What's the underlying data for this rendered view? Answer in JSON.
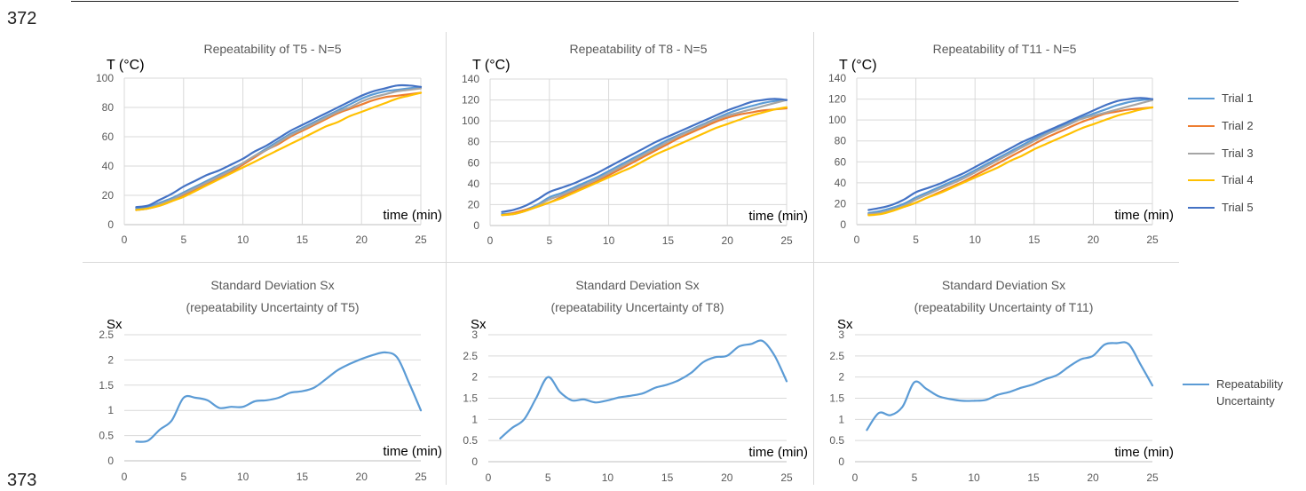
{
  "line_numbers": [
    "372",
    "373"
  ],
  "legend_top": [
    "Trial 1",
    "Trial 2",
    "Trial 3",
    "Trial 4",
    "Trial 5"
  ],
  "legend_bottom": [
    "Repeatability",
    "Uncertainty"
  ],
  "series_colors": [
    "#5B9BD5",
    "#ED7D31",
    "#A5A5A5",
    "#FFC000",
    "#4472C4"
  ],
  "sx_color": "#5B9BD5",
  "chart_data": [
    {
      "type": "line",
      "title": "Repeatability of T5 - N=5",
      "ylabel": "T (°C)",
      "xlabel": "time (min)",
      "xlim": [
        0,
        25
      ],
      "ylim": [
        0,
        100
      ],
      "xticks": [
        0,
        5,
        10,
        15,
        20,
        25
      ],
      "yticks": [
        0,
        20,
        40,
        60,
        80,
        100
      ],
      "x": [
        1,
        2,
        3,
        4,
        5,
        6,
        7,
        8,
        9,
        10,
        11,
        12,
        13,
        14,
        15,
        16,
        17,
        18,
        19,
        20,
        21,
        22,
        23,
        24,
        25
      ],
      "series": [
        {
          "name": "Trial 1",
          "values": [
            11,
            12,
            15,
            18,
            22,
            26,
            30,
            34,
            38,
            42,
            47,
            52,
            57,
            62,
            66,
            70,
            74,
            78,
            82,
            86,
            89,
            91,
            92,
            93,
            94
          ]
        },
        {
          "name": "Trial 2",
          "values": [
            10,
            11,
            13,
            16,
            20,
            24,
            28,
            32,
            36,
            41,
            46,
            51,
            55,
            60,
            64,
            68,
            72,
            76,
            79,
            82,
            85,
            87,
            88,
            89,
            90
          ]
        },
        {
          "name": "Trial 3",
          "values": [
            10,
            11,
            14,
            17,
            21,
            25,
            29,
            33,
            37,
            42,
            47,
            51,
            56,
            61,
            65,
            69,
            73,
            77,
            80,
            84,
            87,
            89,
            91,
            92,
            93
          ]
        },
        {
          "name": "Trial 4",
          "values": [
            10,
            11,
            13,
            16,
            19,
            23,
            27,
            31,
            35,
            39,
            43,
            47,
            51,
            55,
            59,
            63,
            67,
            70,
            74,
            77,
            80,
            83,
            86,
            88,
            90
          ]
        },
        {
          "name": "Trial 5",
          "values": [
            12,
            13,
            17,
            21,
            26,
            30,
            34,
            37,
            41,
            45,
            50,
            54,
            59,
            64,
            68,
            72,
            76,
            80,
            84,
            88,
            91,
            93,
            95,
            95,
            94
          ]
        }
      ]
    },
    {
      "type": "line",
      "title": "Repeatability of T8 - N=5",
      "ylabel": "T (°C)",
      "xlabel": "time (min)",
      "xlim": [
        0,
        25
      ],
      "ylim": [
        0,
        140
      ],
      "xticks": [
        0,
        5,
        10,
        15,
        20,
        25
      ],
      "yticks": [
        0,
        20,
        40,
        60,
        80,
        100,
        120,
        140
      ],
      "x": [
        1,
        2,
        3,
        4,
        5,
        6,
        7,
        8,
        9,
        10,
        11,
        12,
        13,
        14,
        15,
        16,
        17,
        18,
        19,
        20,
        21,
        22,
        23,
        24,
        25
      ],
      "series": [
        {
          "name": "Trial 1",
          "values": [
            11,
            12,
            15,
            20,
            27,
            31,
            36,
            41,
            46,
            52,
            58,
            64,
            70,
            76,
            82,
            87,
            92,
            97,
            102,
            107,
            111,
            114,
            117,
            119,
            120
          ]
        },
        {
          "name": "Trial 2",
          "values": [
            10,
            12,
            15,
            18,
            22,
            27,
            32,
            37,
            42,
            48,
            54,
            60,
            66,
            72,
            78,
            84,
            89,
            94,
            99,
            103,
            106,
            108,
            110,
            111,
            112
          ]
        },
        {
          "name": "Trial 3",
          "values": [
            10,
            11,
            14,
            19,
            25,
            29,
            34,
            39,
            44,
            50,
            56,
            62,
            68,
            74,
            80,
            86,
            91,
            96,
            101,
            105,
            108,
            111,
            114,
            117,
            120
          ]
        },
        {
          "name": "Trial 4",
          "values": [
            10,
            11,
            14,
            18,
            22,
            26,
            31,
            36,
            41,
            46,
            51,
            56,
            62,
            68,
            73,
            78,
            83,
            88,
            93,
            97,
            101,
            105,
            108,
            111,
            113
          ]
        },
        {
          "name": "Trial 5",
          "values": [
            13,
            15,
            19,
            25,
            32,
            36,
            40,
            45,
            50,
            56,
            62,
            68,
            74,
            80,
            85,
            90,
            95,
            100,
            105,
            110,
            114,
            118,
            120,
            121,
            120
          ]
        }
      ]
    },
    {
      "type": "line",
      "title": "Repeatability of T11 - N=5",
      "ylabel": "T (°C)",
      "xlabel": "time (min)",
      "xlim": [
        0,
        25
      ],
      "ylim": [
        0,
        140
      ],
      "xticks": [
        0,
        5,
        10,
        15,
        20,
        25
      ],
      "yticks": [
        0,
        20,
        40,
        60,
        80,
        100,
        120,
        140
      ],
      "x": [
        1,
        2,
        3,
        4,
        5,
        6,
        7,
        8,
        9,
        10,
        11,
        12,
        13,
        14,
        15,
        16,
        17,
        18,
        19,
        20,
        21,
        22,
        23,
        24,
        25
      ],
      "series": [
        {
          "name": "Trial 1",
          "values": [
            11,
            13,
            16,
            20,
            26,
            31,
            36,
            41,
            46,
            52,
            58,
            64,
            70,
            76,
            82,
            87,
            92,
            97,
            102,
            106,
            110,
            114,
            117,
            119,
            120
          ]
        },
        {
          "name": "Trial 2",
          "values": [
            10,
            11,
            14,
            17,
            21,
            26,
            31,
            36,
            41,
            47,
            53,
            59,
            65,
            71,
            77,
            83,
            88,
            93,
            98,
            102,
            106,
            108,
            110,
            111,
            112
          ]
        },
        {
          "name": "Trial 3",
          "values": [
            10,
            11,
            14,
            18,
            24,
            29,
            34,
            39,
            44,
            50,
            56,
            62,
            68,
            74,
            80,
            86,
            91,
            96,
            101,
            104,
            107,
            110,
            113,
            116,
            119
          ]
        },
        {
          "name": "Trial 4",
          "values": [
            9,
            10,
            13,
            17,
            21,
            26,
            30,
            35,
            40,
            45,
            50,
            55,
            61,
            66,
            72,
            77,
            82,
            87,
            92,
            96,
            100,
            104,
            107,
            110,
            112
          ]
        },
        {
          "name": "Trial 5",
          "values": [
            14,
            16,
            19,
            24,
            31,
            35,
            39,
            44,
            49,
            55,
            61,
            67,
            73,
            79,
            84,
            89,
            94,
            99,
            104,
            109,
            114,
            118,
            120,
            121,
            120
          ]
        }
      ]
    },
    {
      "type": "line",
      "title": "Standard Deviation Sx",
      "subtitle": "(repeatability Uncertainty of T5)",
      "ylabel": "Sx",
      "xlabel": "time (min)",
      "xlim": [
        0,
        25
      ],
      "ylim": [
        0,
        2.5
      ],
      "xticks": [
        0,
        5,
        10,
        15,
        20,
        25
      ],
      "yticks": [
        0,
        0.5,
        1,
        1.5,
        2,
        2.5
      ],
      "x": [
        1,
        2,
        3,
        4,
        5,
        6,
        7,
        8,
        9,
        10,
        11,
        12,
        13,
        14,
        15,
        16,
        17,
        18,
        19,
        20,
        21,
        22,
        23,
        24,
        25
      ],
      "series": [
        {
          "name": "Repeatability Uncertainty",
          "values": [
            0.38,
            0.4,
            0.62,
            0.8,
            1.25,
            1.25,
            1.2,
            1.05,
            1.07,
            1.07,
            1.18,
            1.2,
            1.25,
            1.35,
            1.38,
            1.45,
            1.62,
            1.8,
            1.92,
            2.02,
            2.1,
            2.15,
            2.05,
            1.55,
            1.0
          ]
        }
      ]
    },
    {
      "type": "line",
      "title": "Standard Deviation Sx",
      "subtitle": "(repeatability Uncertainty of T8)",
      "ylabel": "Sx",
      "xlabel": "time (min)",
      "xlim": [
        0,
        25
      ],
      "ylim": [
        0,
        3
      ],
      "xticks": [
        0,
        5,
        10,
        15,
        20,
        25
      ],
      "yticks": [
        0,
        0.5,
        1,
        1.5,
        2,
        2.5,
        3
      ],
      "x": [
        1,
        2,
        3,
        4,
        5,
        6,
        7,
        8,
        9,
        10,
        11,
        12,
        13,
        14,
        15,
        16,
        17,
        18,
        19,
        20,
        21,
        22,
        23,
        24,
        25
      ],
      "series": [
        {
          "name": "Repeatability Uncertainty",
          "values": [
            0.55,
            0.8,
            1.0,
            1.5,
            2.0,
            1.65,
            1.45,
            1.47,
            1.4,
            1.45,
            1.52,
            1.56,
            1.62,
            1.75,
            1.82,
            1.93,
            2.1,
            2.35,
            2.47,
            2.5,
            2.72,
            2.78,
            2.85,
            2.5,
            1.9
          ]
        }
      ]
    },
    {
      "type": "line",
      "title": "Standard Deviation Sx",
      "subtitle": "(repeatability Uncertainty of T11)",
      "ylabel": "Sx",
      "xlabel": "time (min)",
      "xlim": [
        0,
        25
      ],
      "ylim": [
        0,
        3
      ],
      "xticks": [
        0,
        5,
        10,
        15,
        20,
        25
      ],
      "yticks": [
        0,
        0.5,
        1,
        1.5,
        2,
        2.5,
        3
      ],
      "x": [
        1,
        2,
        3,
        4,
        5,
        6,
        7,
        8,
        9,
        10,
        11,
        12,
        13,
        14,
        15,
        16,
        17,
        18,
        19,
        20,
        21,
        22,
        23,
        24,
        25
      ],
      "series": [
        {
          "name": "Repeatability Uncertainty",
          "values": [
            0.75,
            1.15,
            1.1,
            1.3,
            1.88,
            1.72,
            1.55,
            1.48,
            1.44,
            1.44,
            1.46,
            1.58,
            1.65,
            1.75,
            1.83,
            1.95,
            2.05,
            2.25,
            2.42,
            2.5,
            2.77,
            2.8,
            2.78,
            2.3,
            1.8
          ]
        }
      ]
    }
  ]
}
